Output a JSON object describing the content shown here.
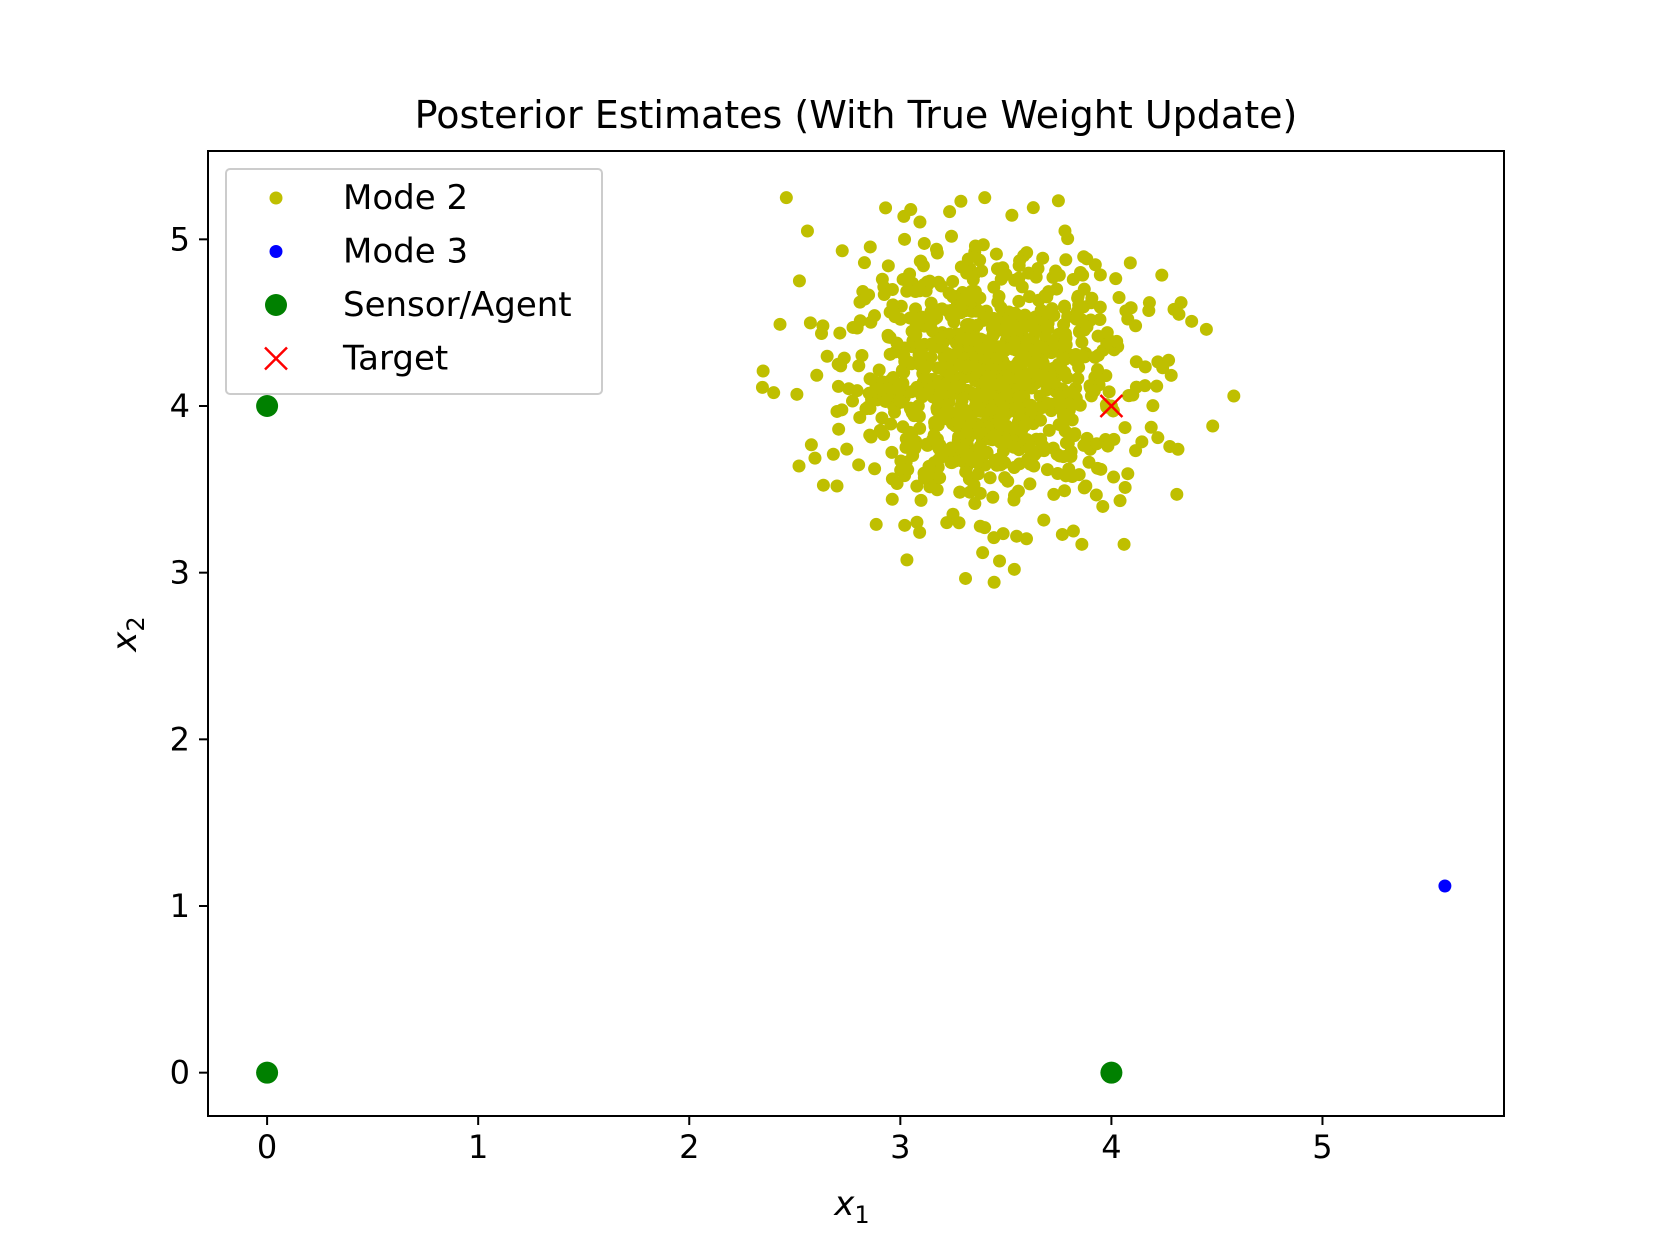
{
  "chart_data": {
    "type": "scatter",
    "title": "Posterior Estimates (With True Weight Update)",
    "xlabel": "x",
    "xlabel_sub": "1",
    "ylabel": "x",
    "ylabel_sub": "2",
    "xlim": [
      -0.28,
      5.86
    ],
    "ylim": [
      -0.26,
      5.53
    ],
    "xticks": [
      0,
      1,
      2,
      3,
      4,
      5
    ],
    "yticks": [
      0,
      1,
      2,
      3,
      4,
      5
    ],
    "grid": false,
    "legend_position": "top-left",
    "series": [
      {
        "name": "Mode 2",
        "color": "#bfbf00",
        "marker": "small-dot",
        "cloud": {
          "center": [
            3.42,
            4.16
          ],
          "std": [
            0.33,
            0.36
          ],
          "count": 1000
        },
        "points": [
          [
            2.46,
            5.25
          ],
          [
            2.56,
            5.05
          ],
          [
            3.4,
            5.25
          ],
          [
            3.63,
            5.19
          ],
          [
            2.35,
            4.21
          ],
          [
            2.4,
            4.08
          ],
          [
            2.43,
            4.49
          ],
          [
            2.51,
            4.07
          ],
          [
            2.52,
            3.64
          ],
          [
            4.58,
            4.06
          ],
          [
            4.48,
            3.88
          ],
          [
            4.45,
            4.46
          ],
          [
            4.33,
            4.62
          ],
          [
            4.31,
            3.47
          ],
          [
            4.06,
            3.17
          ],
          [
            3.54,
            3.02
          ],
          [
            3.47,
            3.07
          ],
          [
            3.39,
            3.12
          ],
          [
            3.22,
            3.3
          ],
          [
            2.7,
            3.52
          ],
          [
            4.0,
            4.0
          ],
          [
            3.95,
            3.62
          ],
          [
            3.82,
            3.25
          ],
          [
            3.86,
            3.17
          ],
          [
            4.22,
            3.81
          ],
          [
            4.18,
            4.62
          ],
          [
            4.32,
            4.55
          ],
          [
            3.78,
            5.05
          ],
          [
            3.02,
            5.0
          ],
          [
            2.83,
            4.86
          ]
        ]
      },
      {
        "name": "Mode 3",
        "color": "#0000ff",
        "marker": "small-dot",
        "points": [
          [
            5.58,
            1.12
          ]
        ]
      },
      {
        "name": "Sensor/Agent",
        "color": "#008000",
        "marker": "large-dot",
        "points": [
          [
            0,
            4
          ],
          [
            0,
            0
          ],
          [
            4,
            0
          ]
        ]
      },
      {
        "name": "Target",
        "color": "#ff0000",
        "marker": "x",
        "points": [
          [
            4,
            4
          ]
        ]
      }
    ]
  }
}
